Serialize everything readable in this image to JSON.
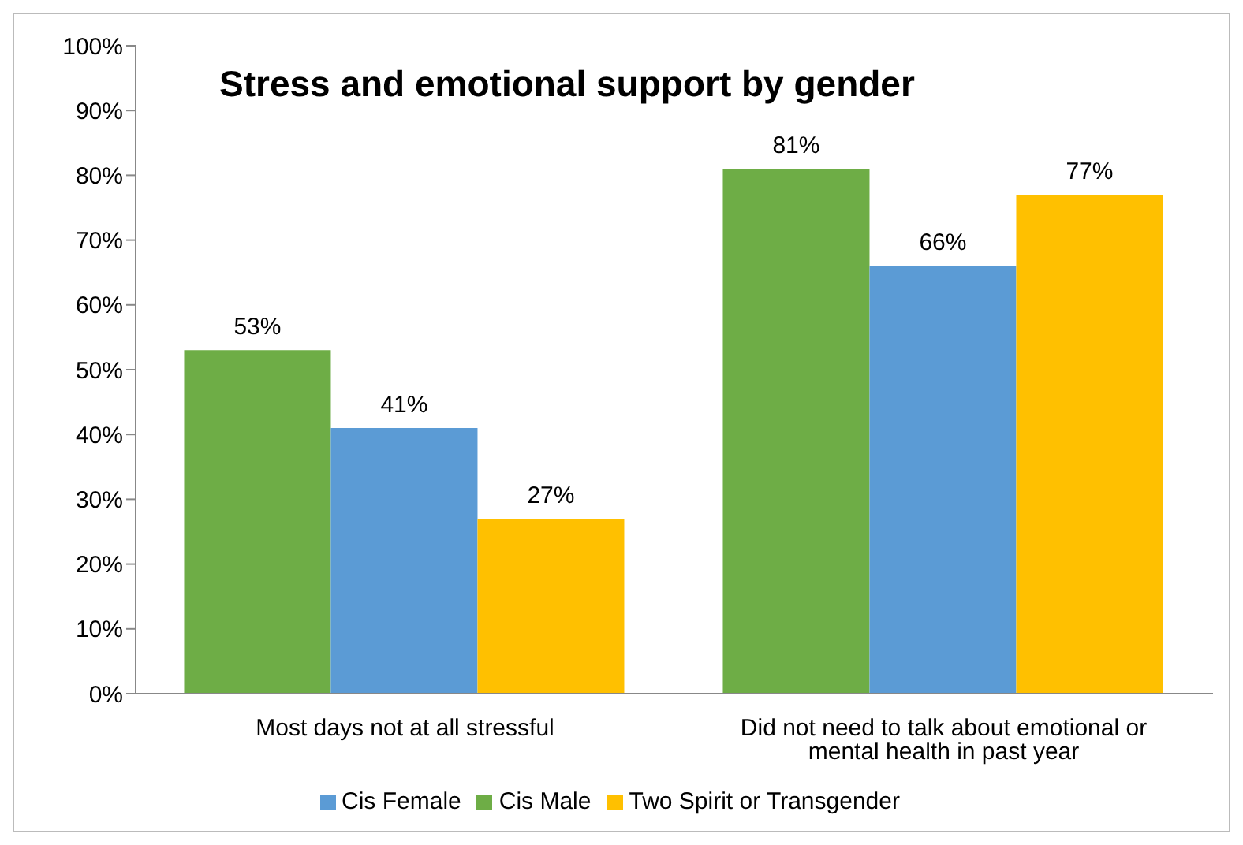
{
  "chart_data": {
    "type": "bar",
    "title": "Stress and emotional support by gender",
    "categories": [
      "Most days not at all stressful",
      "Did not need to talk about emotional or mental health in past year"
    ],
    "series": [
      {
        "name": "Cis Male",
        "color": "#6ead46",
        "values": [
          53,
          81
        ],
        "value_labels": [
          "53%",
          "81%"
        ]
      },
      {
        "name": "Cis Female",
        "color": "#5b9bd5",
        "values": [
          41,
          66
        ],
        "value_labels": [
          "41%",
          "66%"
        ]
      },
      {
        "name": "Two Spirit or Transgender",
        "color": "#ffc000",
        "values": [
          27,
          77
        ],
        "value_labels": [
          "27%",
          "77%"
        ]
      }
    ],
    "ylim": [
      0,
      100
    ],
    "yticks": [
      {
        "value": 0,
        "label": "0%"
      },
      {
        "value": 10,
        "label": "10%"
      },
      {
        "value": 20,
        "label": "20%"
      },
      {
        "value": 30,
        "label": "30%"
      },
      {
        "value": 40,
        "label": "40%"
      },
      {
        "value": 50,
        "label": "50%"
      },
      {
        "value": 60,
        "label": "60%"
      },
      {
        "value": 70,
        "label": "70%"
      },
      {
        "value": 80,
        "label": "80%"
      },
      {
        "value": 90,
        "label": "90%"
      },
      {
        "value": 100,
        "label": "100%"
      }
    ],
    "grid": false,
    "legend": "bottom"
  }
}
